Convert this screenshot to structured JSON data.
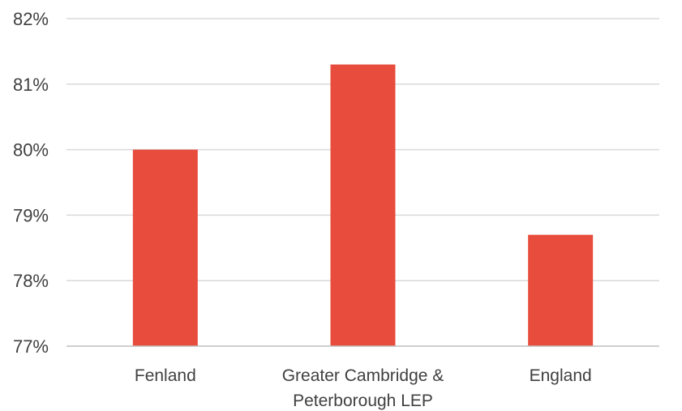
{
  "chart_data": {
    "type": "bar",
    "title": "",
    "xlabel": "",
    "ylabel": "",
    "categories": [
      "Fenland",
      "Greater Cambridge & Peterborough LEP",
      "England"
    ],
    "category_label_lines": [
      [
        "Fenland"
      ],
      [
        "Greater Cambridge &",
        "Peterborough LEP"
      ],
      [
        "England"
      ]
    ],
    "values": [
      80.0,
      81.3,
      78.7
    ],
    "unit": "%",
    "ylim": [
      77,
      82
    ],
    "yticks": [
      77,
      78,
      79,
      80,
      81,
      82
    ],
    "ytick_labels": [
      "77%",
      "78%",
      "79%",
      "80%",
      "81%",
      "82%"
    ],
    "grid": true,
    "legend": "none",
    "bar_color": "#e84c3d",
    "grid_color": "#d9d9d9",
    "text_color": "#404040"
  }
}
